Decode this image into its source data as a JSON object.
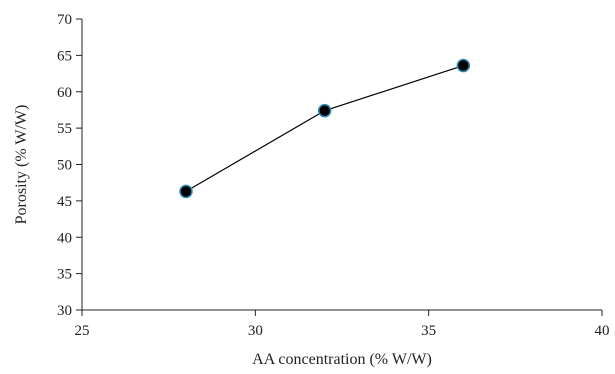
{
  "chart_data": {
    "type": "line",
    "title": "",
    "xlabel": "AA concentration (% W/W)",
    "ylabel": "Porosity (% W/W)",
    "xlim": [
      25,
      40
    ],
    "ylim": [
      30,
      70
    ],
    "xticks": [
      25,
      30,
      35,
      40
    ],
    "yticks": [
      30,
      35,
      40,
      45,
      50,
      55,
      60,
      65,
      70
    ],
    "grid": false,
    "legend": "none",
    "series": [
      {
        "x": [
          28,
          32,
          36
        ],
        "y": [
          46.3,
          57.4,
          63.6
        ],
        "line_color": "#000000",
        "marker": "circle",
        "marker_fill": "#000000",
        "marker_edge": "#2e8bb5"
      }
    ]
  }
}
